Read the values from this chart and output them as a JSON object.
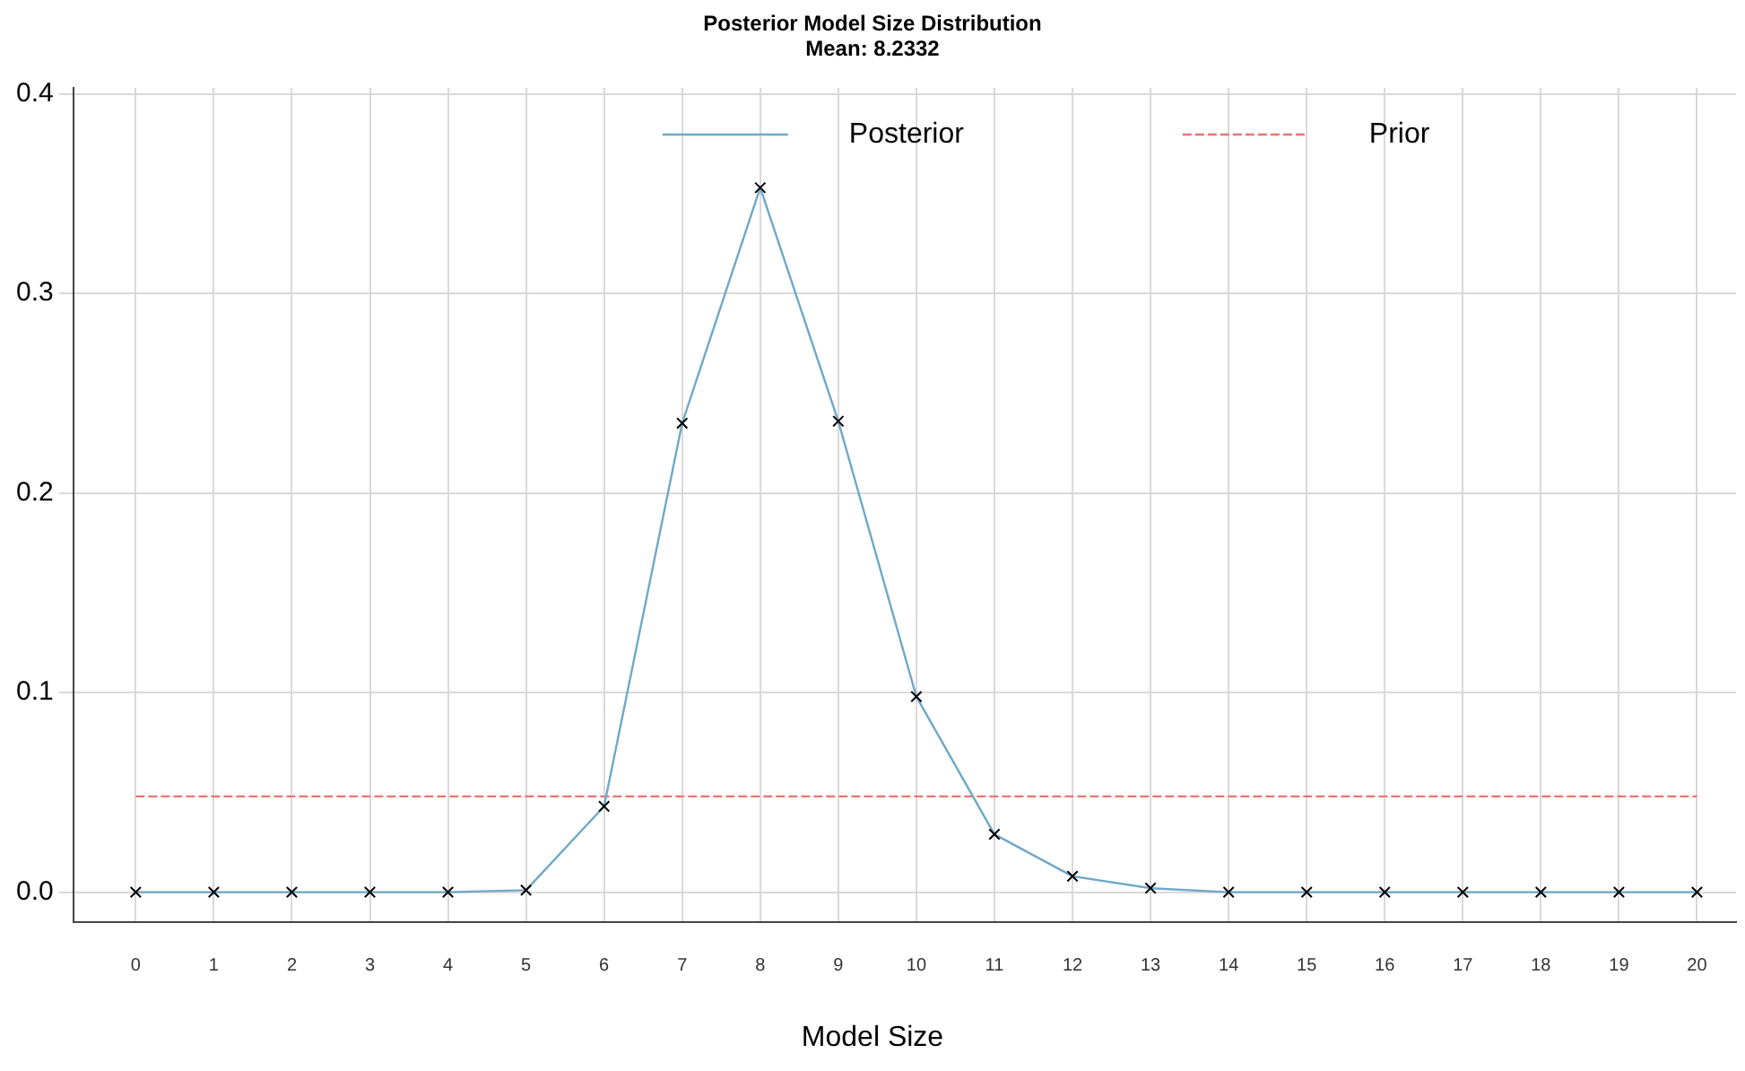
{
  "chart_data": {
    "type": "line",
    "title": "Posterior Model Size Distribution",
    "subtitle": "Mean: 8.2332",
    "xlabel": "Model Size",
    "xlim": [
      -0.8,
      20.5
    ],
    "xticks": [
      0,
      1,
      2,
      3,
      4,
      5,
      6,
      7,
      8,
      9,
      10,
      11,
      12,
      13,
      14,
      15,
      16,
      17,
      18,
      19,
      20
    ],
    "ylim": [
      -0.015,
      0.403
    ],
    "yticks": [
      {
        "value": 0,
        "label": "0.0"
      },
      0.1,
      0.2,
      0.3,
      0.4
    ],
    "grid": true,
    "legend": "top",
    "series": [
      {
        "name": "Posterior",
        "color": "#6fa8c8",
        "marker": "cross",
        "line_style": "solid",
        "x": [
          0,
          1,
          2,
          3,
          4,
          5,
          6,
          7,
          8,
          9,
          10,
          11,
          12,
          13,
          14,
          15,
          16,
          17,
          18,
          19,
          20
        ],
        "values": [
          0,
          0,
          0,
          0,
          0,
          0.001,
          0.043,
          0.235,
          0.353,
          0.236,
          0.098,
          0.029,
          0.008,
          0.002,
          0,
          0,
          0,
          0,
          0,
          0,
          0
        ]
      },
      {
        "name": "Prior",
        "color": "#e8766f",
        "marker": "none",
        "line_style": "dashed",
        "x": [
          0,
          20
        ],
        "values": [
          0.048,
          0.048
        ]
      }
    ]
  }
}
